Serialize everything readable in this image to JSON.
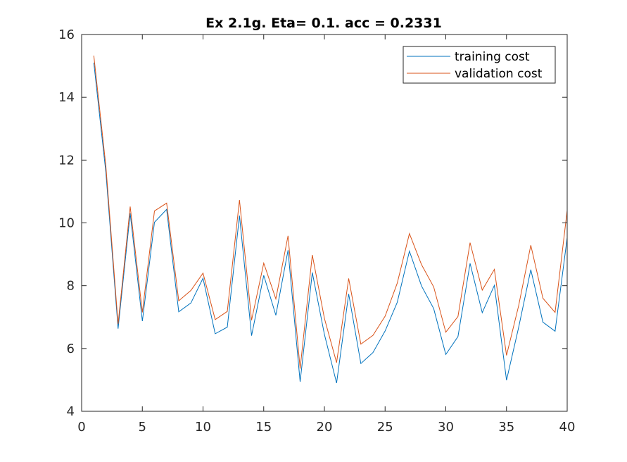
{
  "chart_data": {
    "type": "line",
    "title": "Ex 2.1g. Eta= 0.1. acc = 0.2331",
    "xlabel": "",
    "ylabel": "",
    "xlim": [
      0,
      40
    ],
    "ylim": [
      4,
      16
    ],
    "xticks": [
      0,
      5,
      10,
      15,
      20,
      25,
      30,
      35,
      40
    ],
    "yticks": [
      4,
      6,
      8,
      10,
      12,
      14,
      16
    ],
    "grid": false,
    "legend_position": "top-right",
    "x": [
      1,
      2,
      3,
      4,
      5,
      6,
      7,
      8,
      9,
      10,
      11,
      12,
      13,
      14,
      15,
      16,
      17,
      18,
      19,
      20,
      21,
      22,
      23,
      24,
      25,
      26,
      27,
      28,
      29,
      30,
      31,
      32,
      33,
      34,
      35,
      36,
      37,
      38,
      39,
      40
    ],
    "series": [
      {
        "name": "training cost",
        "color": "#0072BD",
        "values": [
          15.1,
          11.6,
          6.63,
          10.3,
          6.87,
          10.02,
          10.43,
          7.17,
          7.45,
          8.24,
          6.47,
          6.68,
          10.23,
          6.41,
          8.33,
          7.06,
          9.13,
          4.94,
          8.42,
          6.45,
          4.9,
          7.74,
          5.52,
          5.87,
          6.56,
          7.47,
          9.1,
          7.99,
          7.27,
          5.81,
          6.38,
          8.71,
          7.14,
          8.01,
          4.99,
          6.67,
          8.51,
          6.84,
          6.55,
          9.53
        ]
      },
      {
        "name": "validation cost",
        "color": "#D95319",
        "values": [
          15.33,
          11.8,
          6.78,
          10.52,
          7.15,
          10.38,
          10.63,
          7.52,
          7.85,
          8.4,
          6.92,
          7.18,
          10.73,
          6.9,
          8.72,
          7.58,
          9.59,
          5.36,
          8.98,
          6.96,
          5.55,
          8.23,
          6.14,
          6.42,
          7.03,
          8.08,
          9.66,
          8.67,
          7.96,
          6.52,
          7.02,
          9.37,
          7.86,
          8.52,
          5.78,
          7.36,
          9.29,
          7.6,
          7.15,
          10.4
        ]
      }
    ]
  }
}
